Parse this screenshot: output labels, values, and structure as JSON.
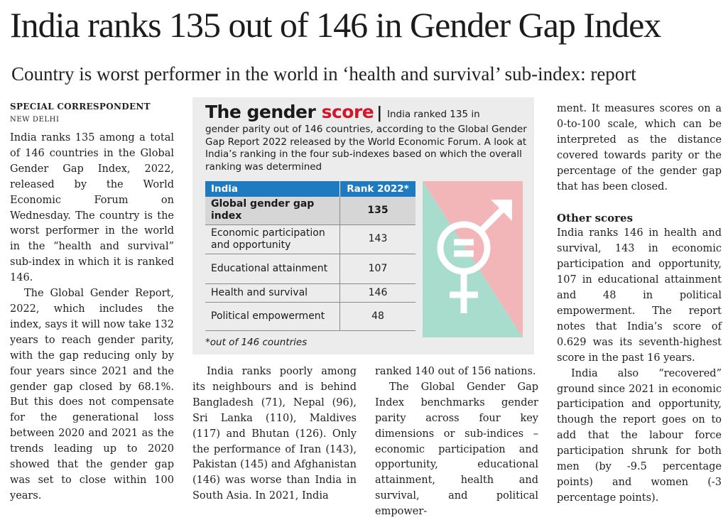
{
  "headline": "India ranks 135 out of 146 in Gender Gap Index",
  "subheadline": "Country is worst performer in the world in ‘health and survival’ sub-index: report",
  "byline": "SPECIAL CORRESPONDENT",
  "dateline": "NEW DELHI",
  "infobox": {
    "title_main": "The gender",
    "title_accent": "score",
    "separator": "|",
    "intro_line1": "India ranked 135 in",
    "intro_rest": "gender parity out of 146 countries, according to the Global Gender Gap Report 2022 released by the World Economic Forum. A look at India’s ranking in the four sub-indexes based on which the overall ranking was determined",
    "table": {
      "header_country": "India",
      "header_rank": "Rank 2022*",
      "rows": [
        {
          "label": "Global gender gap index",
          "rank": "135",
          "highlight": true
        },
        {
          "label": "Economic participation and opportunity",
          "rank": "143",
          "highlight": false
        },
        {
          "label": "Educational attainment",
          "rank": "107",
          "highlight": false
        },
        {
          "label": "Health and survival",
          "rank": "146",
          "highlight": false
        },
        {
          "label": "Political empowerment",
          "rank": "48",
          "highlight": false
        }
      ]
    },
    "footnote": "*out of 146 countries",
    "colors": {
      "accent_red": "#d0182a",
      "header_blue": "#1f7bbf",
      "pink": "#f2b5b8",
      "mint": "#a8dccd",
      "symbol_white": "#ffffff"
    },
    "symbol_icon": "gender-equality-icon"
  },
  "body": {
    "col1_p1": "India ranks 135 among a total of 146 countries in the Global Gender Gap Index, 2022, released by the World Economic Forum on Wednesday. The country is the worst performer in the world in the “health and survival” sub-index in which it is ranked 146.",
    "col1_p2": "The Global Gender Report, 2022, which includes the index, says it will now take 132 years to reach gender parity, with the gap reducing only by four years since 2021 and the gender gap closed by 68.1%. But this does not compensate for the generational loss between 2020 and 2021 as the trends leading up to 2020 showed that the gender gap was set to close within 100 years.",
    "col2_p1": "India ranks poorly among its neighbours and is behind Bangladesh (71), Nepal (96), Sri Lanka (110), Maldives (117) and Bhutan (126). Only the performance of Iran (143), Pakistan (145) and Afghanistan (146) was worse than India in South Asia. In 2021, India",
    "col3_p1": "ranked 140 out of 156 nations.",
    "col3_p2": "The Global Gender Gap Index benchmarks gender parity across four key dimensions or sub-indices – economic participation and opportunity, educational attainment, health and survival, and political empower-",
    "col4_p1": "ment. It measures scores on a 0-to-100 scale, which can be interpreted as the distance covered towards parity or the percentage of the gender gap that has been closed.",
    "col4_heading": "Other scores",
    "col4_p2": "India ranks 146 in health and survival, 143 in economic participation and opportunity, 107 in educational attainment and 48 in political empowerment. The report notes that India’s score of 0.629 was its seventh-highest score in the past 16 years.",
    "col4_p3": "India also “recovered” ground since 2021 in economic participation and opportunity, though the report goes on to add that the labour force participation shrunk for both men (by -9.5 percentage points) and women (-3 percentage points)."
  }
}
